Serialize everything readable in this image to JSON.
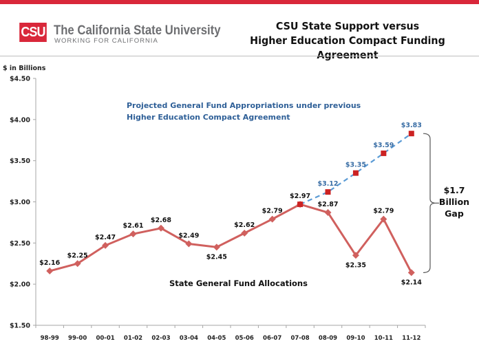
{
  "header": {
    "logo_mark": "CSU",
    "logo_name": "The California State University",
    "logo_tagline": "WORKING FOR CALIFORNIA",
    "title_line1": "CSU State Support versus",
    "title_line2": "Higher Education Compact Funding Agreement",
    "accent_color": "#d9273a"
  },
  "chart_data": {
    "type": "line",
    "title": "CSU State Support versus Higher Education Compact Funding Agreement",
    "ylabel": "$ in Billions",
    "xlabel": "",
    "ylim": [
      1.5,
      4.5
    ],
    "yticks": [
      1.5,
      2.0,
      2.5,
      3.0,
      3.5,
      4.0,
      4.5
    ],
    "ytick_labels": [
      "$1.50",
      "$2.00",
      "$2.50",
      "$3.00",
      "$3.50",
      "$4.00",
      "$4.50"
    ],
    "categories": [
      "98-99",
      "99-00",
      "00-01",
      "01-02",
      "02-03",
      "03-04",
      "04-05",
      "05-06",
      "06-07",
      "07-08",
      "08-09",
      "09-10",
      "10-11",
      "11-12"
    ],
    "grid": false,
    "series": [
      {
        "name": "State General Fund Allocations",
        "color": "#d0605e",
        "marker": "diamond",
        "line_style": "solid",
        "start_index": 0,
        "values": [
          2.16,
          2.25,
          2.47,
          2.61,
          2.68,
          2.49,
          2.45,
          2.62,
          2.79,
          2.97,
          2.87,
          2.35,
          2.79,
          2.14
        ],
        "labels": [
          "$2.16",
          "$2.25",
          "$2.47",
          "$2.61",
          "$2.68",
          "$2.49",
          "$2.45",
          "$2.62",
          "$2.79",
          "$2.97",
          "$2.87",
          "$2.35",
          "$2.79",
          "$2.14"
        ],
        "label_positions": [
          "above",
          "above",
          "above",
          "above",
          "above",
          "above",
          "below",
          "above",
          "above",
          "above",
          "above",
          "below",
          "above",
          "below"
        ]
      },
      {
        "name": "Projected General Fund Appropriations under previous Higher Education Compact Agreement",
        "color": "#5b9bd5",
        "marker": "square",
        "marker_color": "#cc2222",
        "line_style": "dashed",
        "start_index": 9,
        "values": [
          2.97,
          3.12,
          3.35,
          3.59,
          3.83
        ],
        "labels": [
          "",
          "$3.12",
          "$3.35",
          "$3.59",
          "$3.83"
        ]
      }
    ],
    "annotations": {
      "projected_line1": "Projected General Fund Appropriations under previous",
      "projected_line2": "Higher Education Compact Agreement",
      "actual_label": "State General Fund Allocations",
      "gap_line1": "$1.7",
      "gap_line2": "Billion",
      "gap_line3": "Gap",
      "gap_from": 3.83,
      "gap_to": 2.14
    }
  }
}
